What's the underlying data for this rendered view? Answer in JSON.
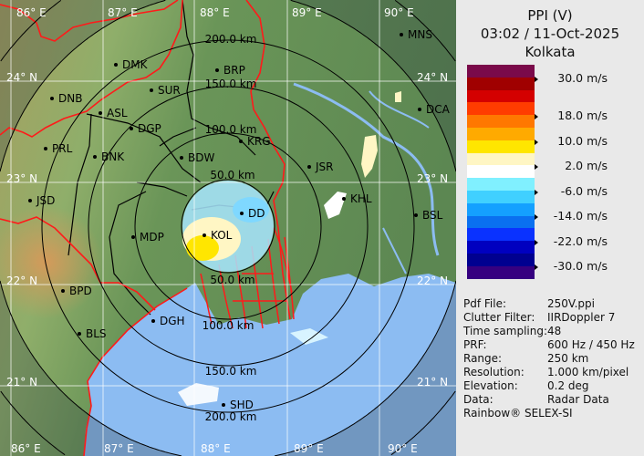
{
  "header": {
    "product": "PPI (V)",
    "datetime": "03:02 / 11-Oct-2025",
    "site": "Kolkata"
  },
  "legend": {
    "unit": "m/s",
    "colors": [
      "#7a0a4a",
      "#a00000",
      "#d40000",
      "#ff3c00",
      "#ff7800",
      "#ffaa00",
      "#ffe600",
      "#fff6c4",
      "#ffffff",
      "#80f0ff",
      "#40d0ff",
      "#14a0ff",
      "#0a70f0",
      "#0a32ff",
      "#0000c0",
      "#000090",
      "#360080"
    ],
    "ticks": [
      {
        "label": "30.0 m/s",
        "value": 30.0
      },
      {
        "label": "18.0 m/s",
        "value": 18.0
      },
      {
        "label": "10.0 m/s",
        "value": 10.0
      },
      {
        "label": "2.0 m/s",
        "value": 2.0
      },
      {
        "label": "-6.0 m/s",
        "value": -6.0
      },
      {
        "label": "-14.0 m/s",
        "value": -14.0
      },
      {
        "label": "-22.0 m/s",
        "value": -22.0
      },
      {
        "label": "-30.0 m/s",
        "value": -30.0
      }
    ]
  },
  "info": [
    {
      "key": "Pdf File:",
      "value": "250V.ppi"
    },
    {
      "key": "Clutter Filter:",
      "value": "IIRDoppler 7"
    },
    {
      "key": "Time sampling:",
      "value": "48"
    },
    {
      "key": "PRF:",
      "value": "600 Hz / 450 Hz"
    },
    {
      "key": "Range:",
      "value": "250 km"
    },
    {
      "key": "Resolution:",
      "value": "1.000 km/pixel"
    },
    {
      "key": "Elevation:",
      "value": "0.2 deg"
    },
    {
      "key": "Data:",
      "value": "Radar Data"
    }
  ],
  "brand": "Rainbow® SELEX-SI",
  "map": {
    "longitudes": [
      "86° E",
      "87° E",
      "88° E",
      "89° E",
      "90° E"
    ],
    "latitudes": [
      "24° N",
      "23° N",
      "22° N",
      "21° N"
    ],
    "range_rings": [
      "50.0 km",
      "100.0 km",
      "150.0 km",
      "200.0 km"
    ],
    "cities": [
      "MNS",
      "DMK",
      "BRP",
      "DNB",
      "SUR",
      "ASL",
      "DCA",
      "DGP",
      "KRG",
      "PRL",
      "BNK",
      "BDW",
      "JSR",
      "JSD",
      "KHL",
      "BSL",
      "DD",
      "KOL",
      "MDP",
      "BPD",
      "DGH",
      "BLS",
      "SHD"
    ],
    "colors": {
      "land": "#5f8a55",
      "sea": "#8cbcf2",
      "state_border": "#ff1a1a",
      "district_border": "#000000"
    }
  }
}
